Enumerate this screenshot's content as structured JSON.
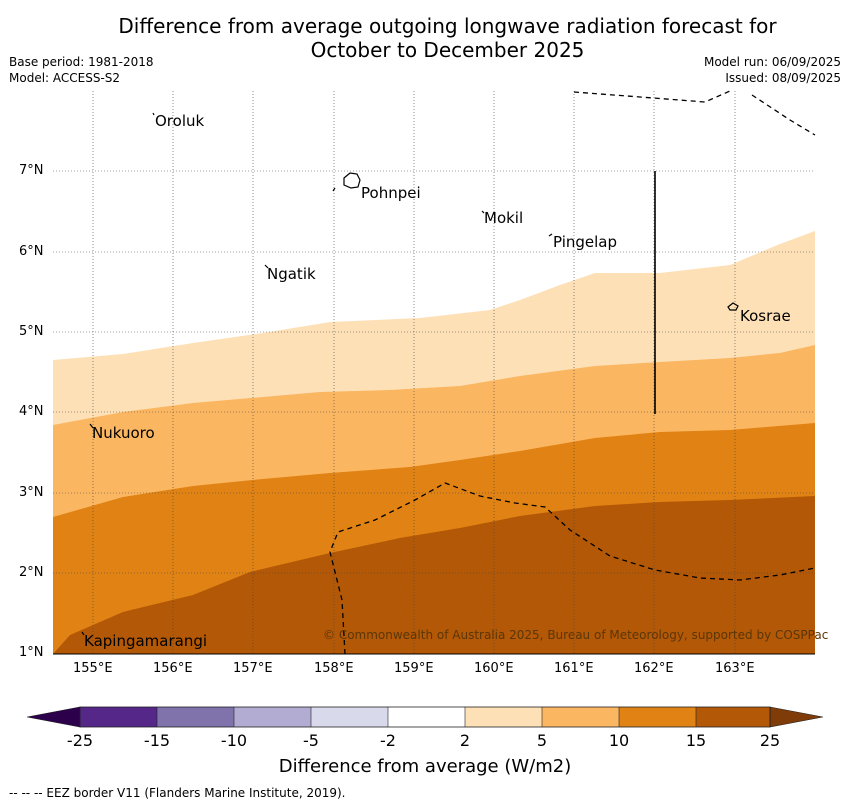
{
  "title_line1": "Difference from average outgoing longwave radiation forecast for",
  "title_line2": "October to December 2025",
  "base_period": "Base period: 1981-2018",
  "model": "Model: ACCESS-S2",
  "model_run": "Model run: 06/09/2025",
  "issued": "Issued: 08/09/2025",
  "map": {
    "lon_range": [
      154.5,
      164.0
    ],
    "lat_range": [
      1.0,
      8.0
    ],
    "grid": "on",
    "x_ticks": [
      "155°E",
      "156°E",
      "157°E",
      "158°E",
      "159°E",
      "160°E",
      "161°E",
      "162°E",
      "163°E"
    ],
    "y_ticks": [
      "1°N",
      "2°N",
      "3°N",
      "4°N",
      "5°N",
      "6°N",
      "7°N"
    ],
    "places": [
      {
        "name": "Oroluk",
        "lon": 155.75,
        "lat": 7.7
      },
      {
        "name": "Pohnpei",
        "lon": 158.25,
        "lat": 6.85
      },
      {
        "name": "Mokil",
        "lon": 159.85,
        "lat": 6.5
      },
      {
        "name": "Pingelap",
        "lon": 160.7,
        "lat": 6.2
      },
      {
        "name": "Ngatik",
        "lon": 157.15,
        "lat": 5.8
      },
      {
        "name": "Kosrae",
        "lon": 162.95,
        "lat": 5.33
      },
      {
        "name": "Nukuoro",
        "lon": 154.95,
        "lat": 3.85
      },
      {
        "name": "Kapingamarangi",
        "lon": 154.8,
        "lat": 1.25
      }
    ],
    "copyright": "© Commonwealth of Australia 2025, Bureau of Meteorology, supported by COSPPac",
    "colors": {
      "2-5": "#fde0b6",
      "5-10": "#fbb661",
      "10-15": "#e08214",
      "15-25": "#b35806"
    }
  },
  "colorbar": {
    "labels": [
      "-25",
      "-15",
      "-10",
      "-5",
      "-2",
      "2",
      "5",
      "10",
      "15",
      "25"
    ],
    "colors": [
      "#2d004b",
      "#542788",
      "#8073ac",
      "#b2abd2",
      "#d8daeb",
      "#ffffff",
      "#fde0b6",
      "#fbb661",
      "#e08214",
      "#b35806",
      "#7f3b08"
    ],
    "title": "Difference from average (W/m2)"
  },
  "legend_text": "-- -- -- EEZ border V11 (Flanders Marine Institute, 2019)."
}
